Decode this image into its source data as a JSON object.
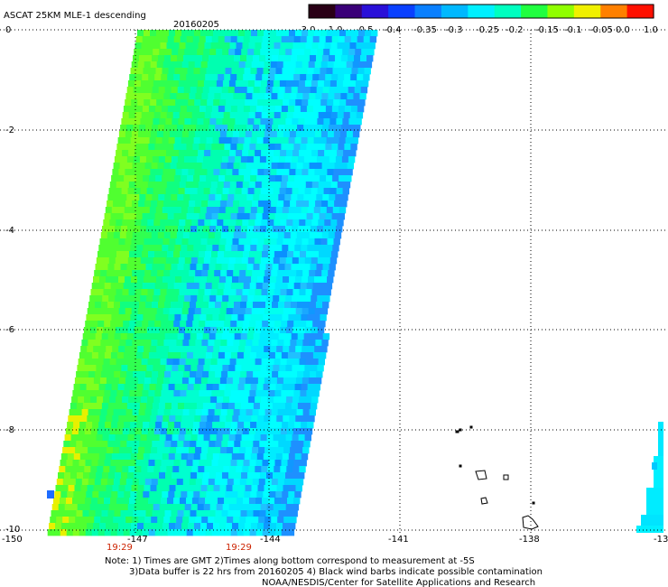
{
  "title": "ASCAT 25KM MLE-1 descending",
  "date": "20160205",
  "colorbar": {
    "tick_labels": [
      "-3.0",
      "-1.0",
      "-0.5",
      "-0.4",
      "-0.35",
      "-0.3",
      "-0.25",
      "-0.2",
      "-0.15",
      "-0.1",
      "-0.05",
      "0.0",
      "1.0"
    ],
    "colors": [
      "#2a0016",
      "#3a0078",
      "#2a10d8",
      "#0a40ff",
      "#0a80ff",
      "#00b8ff",
      "#00f0ff",
      "#00ffc0",
      "#20ff40",
      "#90ff00",
      "#f0f000",
      "#ff8000",
      "#ff1000"
    ]
  },
  "axes": {
    "x_ticks": [
      "-150",
      "-147",
      "-144",
      "-141",
      "-138",
      "-13"
    ],
    "y_ticks": [
      "0",
      "-2",
      "-4",
      "-6",
      "-8",
      "-10"
    ]
  },
  "times": [
    "19:29",
    "19:29"
  ],
  "notes": [
    "Note: 1) Times are GMT 2)Times along bottom correspond to measurement at -5S",
    "3)Data buffer is 22 hrs from 20160205 4) Black wind barbs indicate possible contamination",
    "NOAA/NESDIS/Center for Satellite Applications and Research"
  ],
  "colors": {
    "swath_blue": "#1e90ff",
    "swath_cyan": "#00ffff",
    "swath_green": "#30ff30",
    "time_label": "#cc2200"
  }
}
